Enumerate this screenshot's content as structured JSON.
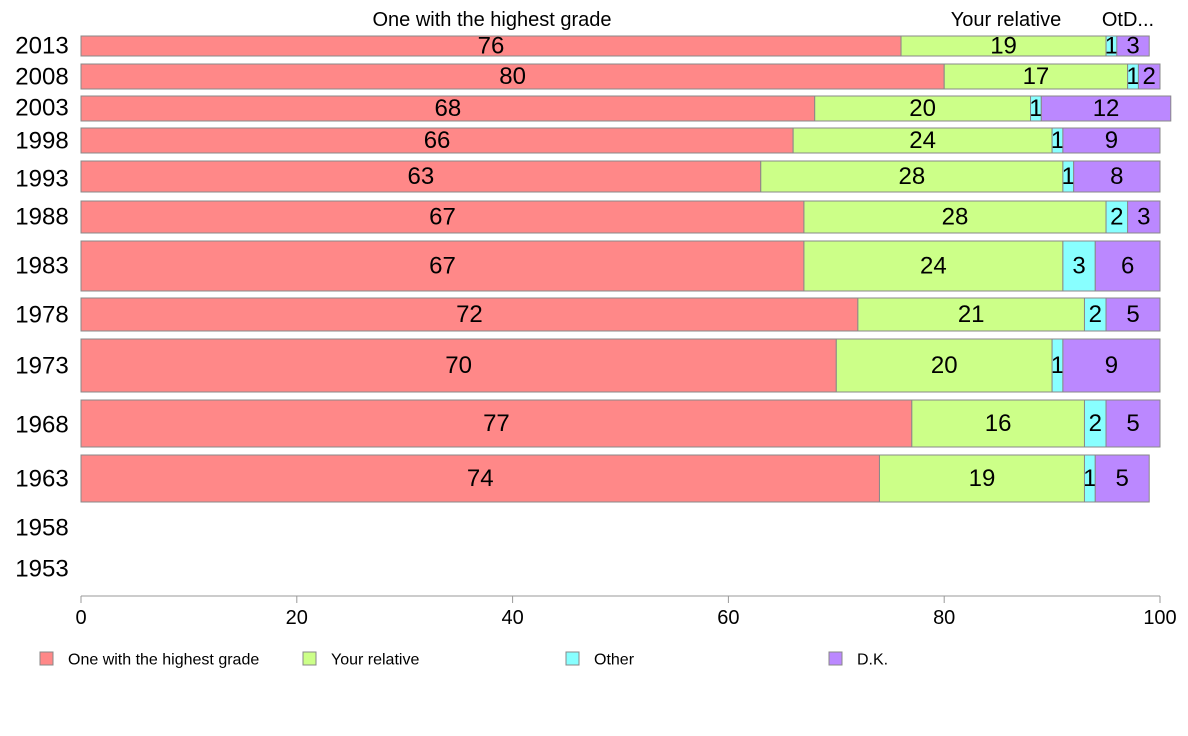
{
  "chart_data": {
    "type": "bar",
    "orientation": "horizontal",
    "stacked": true,
    "categories": [
      "2013",
      "2008",
      "2003",
      "1998",
      "1993",
      "1988",
      "1983",
      "1978",
      "1973",
      "1968",
      "1963",
      "1958",
      "1953"
    ],
    "series": [
      {
        "name": "One with the highest grade",
        "color": "#ff8888",
        "values": [
          76,
          80,
          68,
          66,
          63,
          67,
          67,
          72,
          70,
          77,
          74,
          null,
          null
        ]
      },
      {
        "name": "Your relative",
        "color": "#ccff88",
        "values": [
          19,
          17,
          20,
          24,
          28,
          28,
          24,
          21,
          20,
          16,
          19,
          null,
          null
        ]
      },
      {
        "name": "Other",
        "color": "#88ffff",
        "values": [
          1,
          1,
          1,
          1,
          1,
          2,
          3,
          2,
          1,
          2,
          1,
          null,
          null
        ]
      },
      {
        "name": "D.K.",
        "color": "#bb88ff",
        "values": [
          3,
          2,
          12,
          9,
          8,
          3,
          6,
          5,
          9,
          5,
          5,
          null,
          null
        ]
      }
    ],
    "segment_labels": [
      [
        "76",
        "19",
        "1",
        "3"
      ],
      [
        "80",
        "17",
        "1",
        "2"
      ],
      [
        "68",
        "20",
        "1",
        "12"
      ],
      [
        "66",
        "24",
        "1",
        "9"
      ],
      [
        "63",
        "28",
        "1",
        "8"
      ],
      [
        "67",
        "28",
        "2",
        "3"
      ],
      [
        "67",
        "24",
        "3",
        "6"
      ],
      [
        "72",
        "21",
        "2",
        "5"
      ],
      [
        "70",
        "20",
        "1",
        "9"
      ],
      [
        "77",
        "16",
        "2",
        "5"
      ],
      [
        "74",
        "19",
        "1",
        "5"
      ],
      [],
      []
    ],
    "header_labels": [
      "One with the highest grade",
      "Your relative",
      "OtD..."
    ],
    "xlim": [
      0,
      100
    ],
    "xticks": [
      0,
      20,
      40,
      60,
      80,
      100
    ],
    "grid": false,
    "legend_position": "bottom"
  }
}
